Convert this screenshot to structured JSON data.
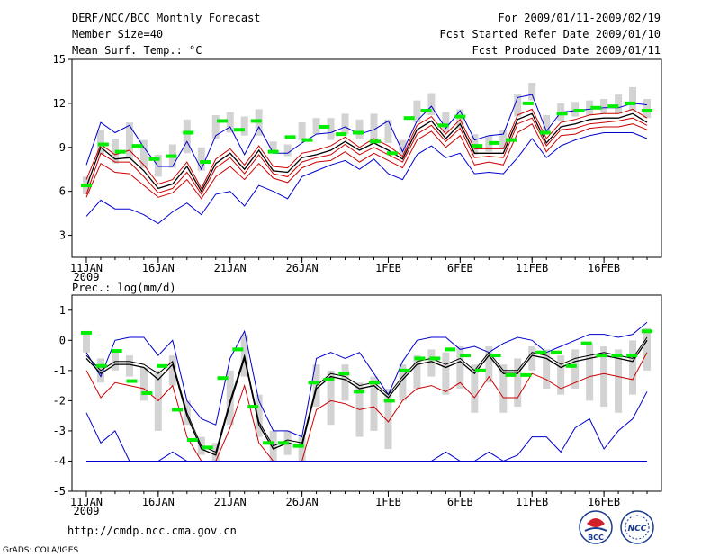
{
  "header": {
    "title": "DERF/NCC/BCC Monthly Forecast",
    "member": "Member Size=40",
    "variable": "Mean Surf. Temp.: °C",
    "period": "For 2009/01/11-2009/02/19",
    "start": "Fcst Started Refer Date 2009/01/10",
    "produced": "Fcst Produced Date 2009/01/11"
  },
  "footer": {
    "url": "http://cmdp.ncc.cma.gov.cn",
    "grads": "GrADS: COLA/IGES"
  },
  "logos": {
    "bcc": "BCC",
    "ncc": "NCC"
  },
  "colors": {
    "max_min": "#0000cc",
    "spread": "#cc0000",
    "mean": "#000000",
    "box": "#d3d3d3",
    "obs": "#00ee00"
  },
  "chart_data": [
    {
      "type": "line",
      "title": "Mean Surf. Temp.: °C",
      "ylim": [
        1.5,
        15
      ],
      "yticks": [
        3,
        6,
        9,
        12,
        15
      ],
      "xticks": [
        {
          "day": 1,
          "label": "11JAN",
          "sub": "2009"
        },
        {
          "day": 6,
          "label": "16JAN"
        },
        {
          "day": 11,
          "label": "21JAN"
        },
        {
          "day": 16,
          "label": "26JAN"
        },
        {
          "day": 22,
          "label": "1FEB"
        },
        {
          "day": 27,
          "label": "6FEB"
        },
        {
          "day": 32,
          "label": "11FEB"
        },
        {
          "day": 37,
          "label": "16FEB"
        }
      ],
      "days": [
        1,
        2,
        3,
        4,
        5,
        6,
        7,
        8,
        9,
        10,
        11,
        12,
        13,
        14,
        15,
        16,
        17,
        18,
        19,
        20,
        21,
        22,
        23,
        24,
        25,
        26,
        27,
        28,
        29,
        30,
        31,
        32,
        33,
        34,
        35,
        36,
        37,
        38,
        39,
        40
      ],
      "series": [
        {
          "name": "max",
          "color": "#0000cc",
          "values": [
            7.8,
            10.7,
            10.0,
            10.5,
            9.0,
            7.7,
            7.7,
            9.4,
            7.5,
            9.8,
            10.4,
            8.5,
            10.4,
            8.6,
            8.6,
            9.3,
            9.9,
            10.0,
            10.4,
            9.9,
            10.2,
            10.8,
            8.7,
            10.8,
            11.8,
            10.3,
            11.5,
            9.5,
            9.8,
            9.9,
            12.4,
            12.6,
            10.1,
            11.4,
            11.5,
            11.6,
            11.7,
            11.7,
            12.0,
            11.9
          ]
        },
        {
          "name": "upper",
          "color": "#cc0000",
          "values": [
            6.8,
            9.2,
            8.5,
            8.8,
            7.8,
            6.5,
            6.8,
            8.0,
            6.2,
            8.2,
            8.9,
            7.8,
            9.1,
            7.7,
            7.6,
            8.6,
            8.8,
            9.1,
            9.7,
            9.0,
            9.6,
            9.1,
            8.4,
            10.5,
            11.1,
            9.9,
            10.9,
            8.9,
            8.9,
            8.9,
            11.2,
            11.6,
            9.6,
            10.7,
            10.9,
            11.2,
            11.3,
            11.3,
            11.6,
            11.0
          ]
        },
        {
          "name": "mean",
          "color": "#000000",
          "values": [
            6.3,
            9.0,
            8.2,
            8.3,
            7.4,
            6.2,
            6.5,
            7.7,
            6.0,
            7.9,
            8.6,
            7.5,
            8.8,
            7.4,
            7.3,
            8.3,
            8.5,
            8.8,
            9.4,
            8.8,
            9.3,
            8.8,
            8.2,
            10.2,
            10.8,
            9.6,
            10.6,
            8.6,
            8.6,
            8.6,
            10.9,
            11.3,
            9.3,
            10.4,
            10.6,
            10.9,
            11.0,
            11.0,
            11.3,
            10.7
          ]
        },
        {
          "name": "lower",
          "color": "#cc0000",
          "values": [
            5.8,
            8.6,
            8.0,
            8.0,
            7.0,
            5.9,
            6.2,
            7.3,
            5.8,
            7.6,
            8.3,
            7.2,
            8.5,
            7.2,
            7.0,
            8.0,
            8.3,
            8.5,
            9.2,
            8.5,
            9.0,
            8.5,
            8.0,
            9.9,
            10.5,
            9.4,
            10.3,
            8.3,
            8.4,
            8.3,
            10.6,
            11.0,
            9.1,
            10.2,
            10.3,
            10.6,
            10.7,
            10.8,
            11.0,
            10.5
          ]
        },
        {
          "name": "lower2",
          "color": "#cc0000",
          "values": [
            5.6,
            7.9,
            7.3,
            7.2,
            6.4,
            5.6,
            5.9,
            6.8,
            5.5,
            7.0,
            7.7,
            6.8,
            7.9,
            6.9,
            6.6,
            7.6,
            8.0,
            8.1,
            8.7,
            8.0,
            8.6,
            8.1,
            7.6,
            9.5,
            10.1,
            9.0,
            9.8,
            7.8,
            8.0,
            7.8,
            10.0,
            10.6,
            8.7,
            9.8,
            9.9,
            10.3,
            10.4,
            10.4,
            10.6,
            10.2
          ]
        },
        {
          "name": "min",
          "color": "#0000cc",
          "values": [
            4.3,
            5.4,
            4.8,
            4.8,
            4.4,
            3.8,
            4.6,
            5.2,
            4.4,
            5.8,
            6.0,
            5.0,
            6.4,
            6.0,
            5.5,
            7.0,
            7.4,
            7.8,
            8.1,
            7.5,
            8.2,
            7.2,
            6.8,
            8.5,
            9.1,
            8.3,
            8.6,
            7.2,
            7.3,
            7.2,
            8.3,
            9.6,
            8.3,
            9.1,
            9.5,
            9.8,
            10.0,
            10.0,
            10.0,
            9.6
          ]
        }
      ],
      "boxes": [
        [
          5.8,
          7.0
        ],
        [
          8.5,
          10.2
        ],
        [
          7.9,
          9.6
        ],
        [
          8.2,
          10.7
        ],
        [
          7.6,
          9.5
        ],
        [
          7.0,
          8.5
        ],
        [
          7.6,
          9.2
        ],
        [
          8.6,
          10.9
        ],
        [
          7.4,
          9.0
        ],
        [
          9.6,
          11.2
        ],
        [
          10.0,
          11.4
        ],
        [
          9.8,
          11.1
        ],
        [
          9.8,
          11.6
        ],
        [
          8.6,
          9.4
        ],
        [
          8.4,
          9.2
        ],
        [
          9.5,
          10.7
        ],
        [
          9.9,
          11.0
        ],
        [
          9.5,
          11.0
        ],
        [
          9.9,
          11.3
        ],
        [
          9.6,
          10.9
        ],
        [
          9.6,
          11.3
        ],
        [
          9.3,
          10.9
        ],
        [
          8.5,
          9.5
        ],
        [
          10.7,
          12.2
        ],
        [
          11.2,
          12.7
        ],
        [
          10.0,
          11.4
        ],
        [
          10.3,
          11.6
        ],
        [
          8.5,
          9.9
        ],
        [
          8.7,
          9.8
        ],
        [
          8.9,
          10.2
        ],
        [
          11.1,
          12.6
        ],
        [
          12.2,
          13.4
        ],
        [
          10.1,
          11.2
        ],
        [
          10.8,
          12.0
        ],
        [
          11.1,
          12.1
        ],
        [
          11.2,
          12.2
        ],
        [
          11.3,
          12.3
        ],
        [
          11.3,
          12.6
        ],
        [
          11.5,
          13.1
        ],
        [
          11.0,
          12.3
        ]
      ],
      "obs": [
        6.4,
        9.2,
        8.7,
        9.1,
        8.2,
        8.4,
        10.0,
        8.0,
        10.8,
        10.2,
        10.8,
        8.7,
        9.7,
        9.5,
        10.4,
        9.9,
        10.0,
        9.4,
        8.6,
        11.0,
        11.5,
        10.5,
        11.1,
        9.1,
        9.3,
        9.5,
        12.0,
        10.0,
        11.3,
        11.5,
        11.7,
        11.8,
        12.0,
        11.5
      ]
    },
    {
      "type": "line",
      "title": "Prec.: log(mm/d)",
      "ylim": [
        -5,
        1.5
      ],
      "yticks": [
        -5,
        -4,
        -3,
        -2,
        -1,
        0,
        1
      ],
      "xticks": [
        {
          "day": 1,
          "label": "11JAN",
          "sub": "2009"
        },
        {
          "day": 6,
          "label": "16JAN"
        },
        {
          "day": 11,
          "label": "21JAN"
        },
        {
          "day": 16,
          "label": "26JAN"
        },
        {
          "day": 22,
          "label": "1FEB"
        },
        {
          "day": 27,
          "label": "6FEB"
        },
        {
          "day": 32,
          "label": "11FEB"
        },
        {
          "day": 37,
          "label": "16FEB"
        }
      ],
      "days": [
        1,
        2,
        3,
        4,
        5,
        6,
        7,
        8,
        9,
        10,
        11,
        12,
        13,
        14,
        15,
        16,
        17,
        18,
        19,
        20,
        21,
        22,
        23,
        24,
        25,
        26,
        27,
        28,
        29,
        30,
        31,
        32,
        33,
        34,
        35,
        36,
        37,
        38,
        39,
        40
      ],
      "series": [
        {
          "name": "max",
          "color": "#0000cc",
          "values": [
            -0.4,
            -1.2,
            0.0,
            0.1,
            0.1,
            -0.5,
            0.0,
            -2.0,
            -2.6,
            -2.8,
            -0.6,
            0.3,
            -2.0,
            -3.0,
            -3.0,
            -3.2,
            -0.6,
            -0.4,
            -0.6,
            -0.4,
            -1.1,
            -1.8,
            -0.7,
            0.0,
            0.1,
            0.1,
            -0.3,
            -0.2,
            -0.4,
            -0.1,
            0.1,
            0.0,
            -0.4,
            -0.2,
            0.0,
            0.2,
            0.2,
            0.1,
            0.2,
            0.6
          ]
        },
        {
          "name": "upper",
          "color": "#000000",
          "values": [
            -0.5,
            -1.0,
            -0.7,
            -0.7,
            -0.8,
            -1.1,
            -0.7,
            -2.4,
            -3.5,
            -3.7,
            -2.0,
            -0.5,
            -2.7,
            -3.5,
            -3.3,
            -3.4,
            -1.5,
            -1.1,
            -1.2,
            -1.5,
            -1.4,
            -1.8,
            -1.2,
            -0.7,
            -0.6,
            -0.8,
            -0.6,
            -1.0,
            -0.4,
            -1.0,
            -1.0,
            -0.4,
            -0.5,
            -0.8,
            -0.6,
            -0.5,
            -0.4,
            -0.5,
            -0.6,
            0.1
          ]
        },
        {
          "name": "mean",
          "color": "#000000",
          "values": [
            -0.6,
            -1.1,
            -0.8,
            -0.8,
            -0.9,
            -1.3,
            -0.8,
            -2.5,
            -3.6,
            -3.8,
            -2.1,
            -0.6,
            -2.8,
            -3.6,
            -3.4,
            -3.5,
            -1.6,
            -1.2,
            -1.3,
            -1.6,
            -1.5,
            -1.9,
            -1.3,
            -0.8,
            -0.7,
            -0.9,
            -0.7,
            -1.1,
            -0.5,
            -1.1,
            -1.1,
            -0.5,
            -0.6,
            -0.9,
            -0.7,
            -0.6,
            -0.5,
            -0.6,
            -0.7,
            0.0
          ]
        },
        {
          "name": "lower",
          "color": "#cc0000",
          "values": [
            -1.0,
            -1.9,
            -1.4,
            -1.5,
            -1.6,
            -2.0,
            -1.5,
            -3.2,
            -4.0,
            -4.0,
            -2.9,
            -1.5,
            -3.4,
            -4.0,
            -4.0,
            -4.0,
            -2.3,
            -2.0,
            -2.1,
            -2.3,
            -2.2,
            -2.7,
            -2.0,
            -1.6,
            -1.5,
            -1.7,
            -1.4,
            -1.9,
            -1.2,
            -1.9,
            -1.9,
            -1.1,
            -1.3,
            -1.6,
            -1.4,
            -1.2,
            -1.1,
            -1.2,
            -1.3,
            -0.4
          ]
        },
        {
          "name": "min",
          "color": "#0000cc",
          "values": [
            -2.4,
            -3.4,
            -3.0,
            -4.0,
            -4.0,
            -4.0,
            -3.7,
            -4.0,
            -4.0,
            -4.0,
            -4.0,
            -4.0,
            -4.0,
            -4.0,
            -4.0,
            -4.0,
            -4.0,
            -4.0,
            -4.0,
            -4.0,
            -4.0,
            -4.0,
            -4.0,
            -4.0,
            -4.0,
            -3.7,
            -4.0,
            -4.0,
            -3.7,
            -4.0,
            -3.8,
            -3.2,
            -3.2,
            -3.7,
            -2.9,
            -2.6,
            -3.6,
            -3.0,
            -2.6,
            -1.7
          ]
        },
        {
          "name": "ref",
          "color": "#0000cc",
          "values": [
            -4.0,
            -4.0,
            -4.0,
            -4.0,
            -4.0,
            -4.0,
            -4.0,
            -4.0,
            -4.0,
            -4.0,
            -4.0,
            -4.0,
            -4.0,
            -4.0,
            -4.0,
            -4.0,
            -4.0,
            -4.0,
            -4.0,
            -4.0,
            -4.0,
            -4.0,
            -4.0,
            -4.0,
            -4.0,
            -4.0,
            -4.0,
            -4.0,
            -4.0,
            -4.0,
            -4.0,
            -4.0,
            -4.0,
            -4.0,
            -4.0,
            -4.0,
            -4.0,
            -4.0,
            -4.0,
            -4.0
          ]
        }
      ],
      "boxes": [
        [
          -0.4,
          0.3
        ],
        [
          -1.4,
          -0.6
        ],
        [
          -1.0,
          -0.4
        ],
        [
          -1.2,
          -0.5
        ],
        [
          -2.0,
          -0.9
        ],
        [
          -3.0,
          -1.0
        ],
        [
          -1.5,
          -0.5
        ],
        [
          -2.8,
          -2.0
        ],
        [
          -3.8,
          -3.2
        ],
        [
          -4.0,
          -3.4
        ],
        [
          -2.8,
          -1.0
        ],
        [
          -1.2,
          0.2
        ],
        [
          -3.2,
          -1.8
        ],
        [
          -4.0,
          -3.0
        ],
        [
          -3.8,
          -3.0
        ],
        [
          -4.0,
          -3.2
        ],
        [
          -2.2,
          -0.8
        ],
        [
          -2.8,
          -1.0
        ],
        [
          -2.0,
          -0.8
        ],
        [
          -3.2,
          -1.4
        ],
        [
          -3.0,
          -1.2
        ],
        [
          -3.6,
          -1.6
        ],
        [
          -2.0,
          -0.8
        ],
        [
          -1.6,
          -0.5
        ],
        [
          -1.2,
          -0.3
        ],
        [
          -1.8,
          -0.4
        ],
        [
          -1.6,
          -0.2
        ],
        [
          -2.4,
          -0.8
        ],
        [
          -1.4,
          -0.2
        ],
        [
          -2.4,
          -0.8
        ],
        [
          -2.2,
          -0.6
        ],
        [
          -1.0,
          -0.2
        ],
        [
          -1.6,
          -0.3
        ],
        [
          -1.8,
          -0.5
        ],
        [
          -1.6,
          -0.3
        ],
        [
          -2.0,
          -0.1
        ],
        [
          -2.2,
          -0.2
        ],
        [
          -2.4,
          -0.3
        ],
        [
          -1.8,
          0.0
        ],
        [
          -1.0,
          0.4
        ]
      ],
      "obs": [
        0.25,
        -0.85,
        -0.35,
        -1.35,
        -1.75,
        -0.85,
        -2.3,
        -3.3,
        -3.55,
        -1.25,
        -0.3,
        -2.2,
        -3.4,
        -3.4,
        -3.5,
        -1.4,
        -1.3,
        -1.1,
        -1.7,
        -1.4,
        -2.0,
        -1.0,
        -0.6,
        -0.6,
        -0.3,
        -0.5,
        -1.0,
        -0.5,
        -1.15,
        -1.15,
        -0.4,
        -0.4,
        -0.85,
        -0.1,
        -0.5,
        -0.5,
        -0.5,
        0.3
      ]
    }
  ]
}
